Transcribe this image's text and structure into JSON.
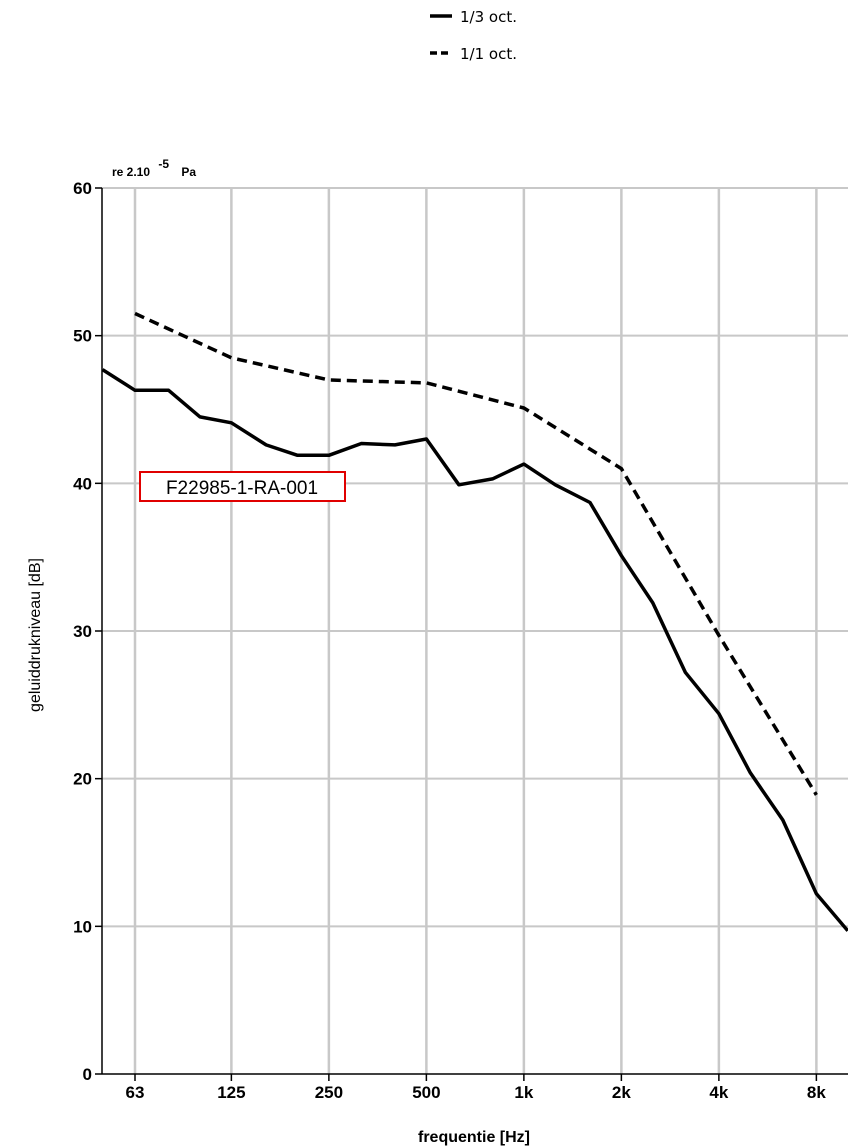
{
  "chart_data": {
    "type": "line",
    "xlabel": "frequentie [Hz]",
    "ylabel": "geluiddrukniveau [dB]",
    "reference": {
      "prefix": "re 2.10",
      "exponent": "-5",
      "unit": "Pa"
    },
    "ylim": [
      0,
      60
    ],
    "yticks": [
      0,
      10,
      20,
      30,
      40,
      50,
      60
    ],
    "x_scale": "log",
    "xticks": [
      {
        "value": 63,
        "label": "63"
      },
      {
        "value": 125,
        "label": "125"
      },
      {
        "value": 250,
        "label": "250"
      },
      {
        "value": 500,
        "label": "500"
      },
      {
        "value": 1000,
        "label": "1k"
      },
      {
        "value": 2000,
        "label": "2k"
      },
      {
        "value": 4000,
        "label": "4k"
      },
      {
        "value": 8000,
        "label": "8k"
      }
    ],
    "xlim": [
      50,
      10000
    ],
    "grid": true,
    "legend_position": "top-center",
    "annotation": {
      "text": "F22985-1-RA-001",
      "border_color": "#e00000"
    },
    "series": [
      {
        "name": "1/3 oct.",
        "style": "solid",
        "color": "#000000",
        "x": [
          50,
          63,
          80,
          100,
          125,
          160,
          200,
          250,
          315,
          400,
          500,
          630,
          800,
          1000,
          1250,
          1600,
          2000,
          2500,
          3150,
          4000,
          5000,
          6300,
          8000,
          10000
        ],
        "y": [
          47.7,
          46.3,
          46.3,
          44.5,
          44.1,
          42.6,
          41.9,
          41.9,
          42.7,
          42.6,
          43.0,
          39.9,
          40.3,
          41.3,
          39.9,
          38.7,
          35.1,
          31.9,
          27.2,
          24.4,
          20.4,
          17.2,
          12.2,
          9.7
        ]
      },
      {
        "name": "1/1 oct.",
        "style": "dashed",
        "color": "#000000",
        "x": [
          63,
          125,
          250,
          500,
          1000,
          2000,
          4000,
          8000
        ],
        "y": [
          51.5,
          48.5,
          47.0,
          46.8,
          45.1,
          41.0,
          29.7,
          18.9
        ]
      }
    ]
  }
}
